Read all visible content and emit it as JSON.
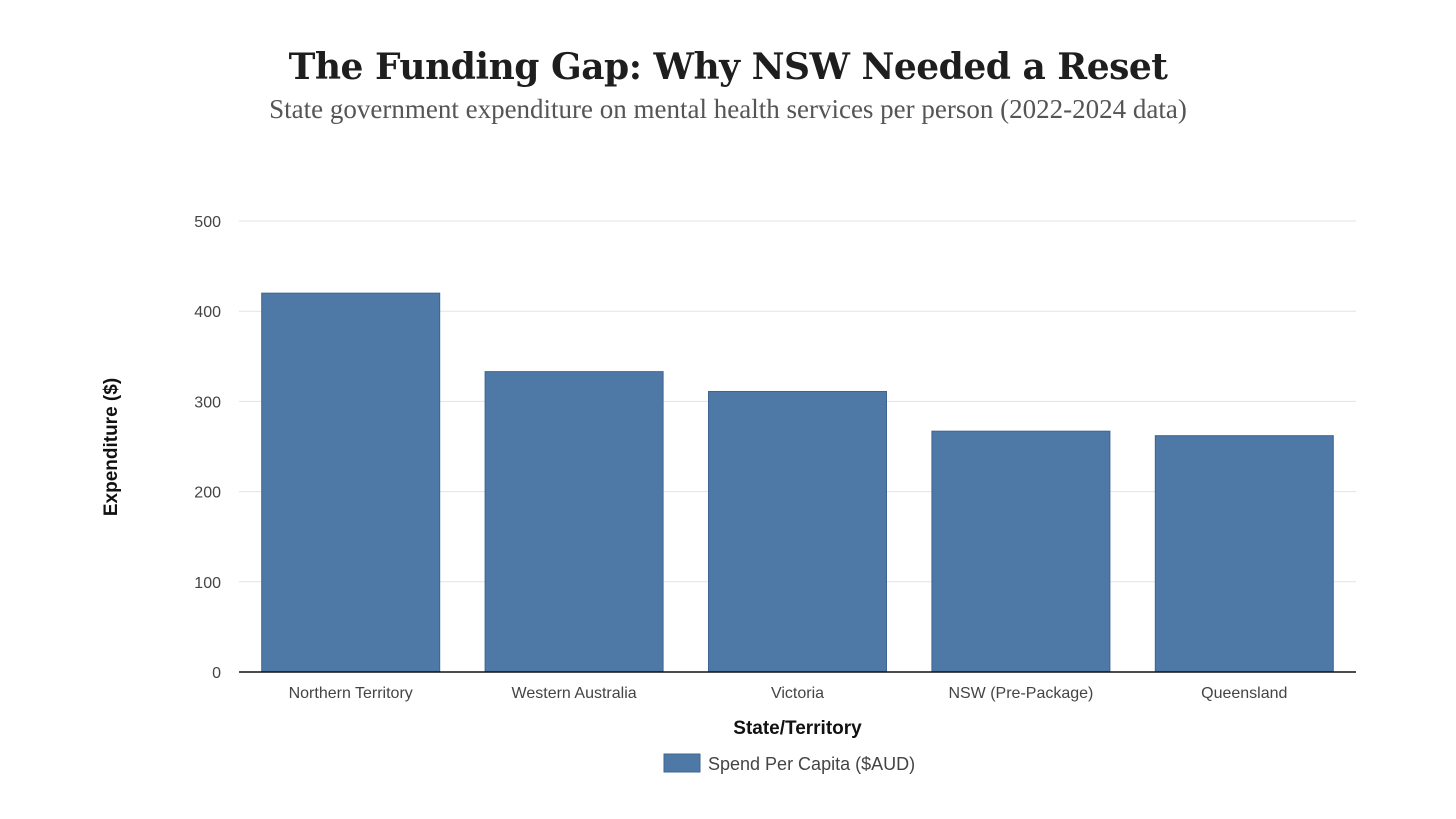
{
  "chart_data": {
    "type": "bar",
    "title": "The Funding Gap: Why NSW Needed a Reset",
    "subtitle": "State government expenditure on mental health services per person (2022-2024 data)",
    "xlabel": "State/Territory",
    "ylabel": "Expenditure ($)",
    "categories": [
      "Northern Territory",
      "Western Australia",
      "Victoria",
      "NSW (Pre-Package)",
      "Queensland"
    ],
    "series": [
      {
        "name": "Spend Per Capita ($AUD)",
        "values": [
          420,
          333,
          311,
          267,
          262
        ],
        "color": "#4e79a7"
      }
    ],
    "ylim": [
      0,
      500
    ],
    "yticks": [
      0,
      100,
      200,
      300,
      400,
      500
    ],
    "grid": true,
    "legend_position": "bottom-center"
  }
}
